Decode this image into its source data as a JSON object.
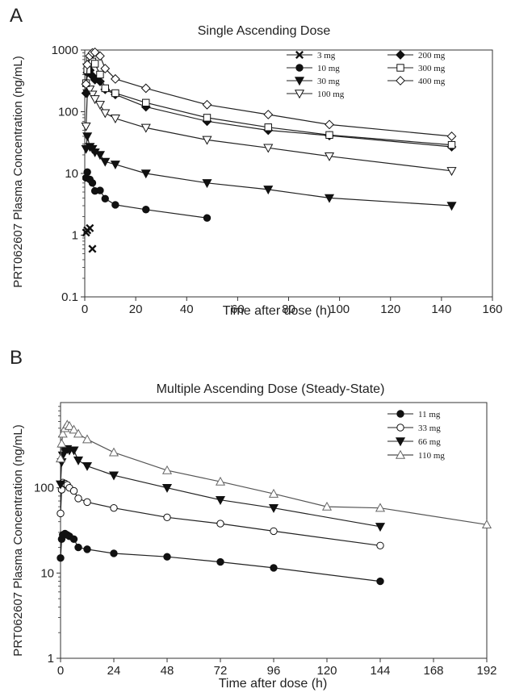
{
  "chart_data": [
    {
      "panel_label": "A",
      "type": "line",
      "title": "Single Ascending Dose",
      "xlabel": "Time after dose (h)",
      "ylabel": "PRT062607 Plasma Concentration (ng/mL)",
      "x_scale": "linear",
      "y_scale": "log",
      "xlim": [
        0,
        160
      ],
      "ylim": [
        0.1,
        1000
      ],
      "x_ticks": [
        "0",
        "20",
        "40",
        "60",
        "80",
        "100",
        "120",
        "140",
        "160"
      ],
      "y_ticks": [
        "0.1",
        "1",
        "10",
        "100",
        "1000"
      ],
      "grid": false,
      "legend_position": "top-right",
      "series": [
        {
          "name": "3 mg",
          "marker": "x",
          "line": false,
          "x": [
            0.5,
            1,
            2,
            3
          ],
          "y": [
            1.1,
            1.2,
            1.3,
            0.6
          ]
        },
        {
          "name": "10 mg",
          "marker": "filled-circle",
          "line": true,
          "x": [
            0.5,
            1,
            2,
            3,
            4,
            6,
            8,
            12,
            24,
            48
          ],
          "y": [
            8.5,
            10.5,
            8.0,
            7.0,
            5.2,
            5.3,
            3.9,
            3.1,
            2.6,
            1.9
          ]
        },
        {
          "name": "30 mg",
          "marker": "filled-triangle-down",
          "line": true,
          "x": [
            0.5,
            1,
            2,
            3,
            4,
            6,
            8,
            12,
            24,
            48,
            72,
            96,
            144
          ],
          "y": [
            25,
            40,
            27,
            25,
            22,
            20,
            15.5,
            14,
            10,
            7.0,
            5.5,
            4.0,
            3.0
          ]
        },
        {
          "name": "100 mg",
          "marker": "open-triangle-down",
          "line": true,
          "x": [
            0.5,
            1,
            2,
            3,
            4,
            6,
            8,
            12,
            24,
            48,
            72,
            96,
            144
          ],
          "y": [
            58,
            200,
            230,
            190,
            160,
            130,
            95,
            78,
            55,
            35,
            26,
            19,
            11
          ]
        },
        {
          "name": "200 mg",
          "marker": "filled-diamond",
          "line": true,
          "x": [
            0.5,
            1,
            2,
            3,
            4,
            6,
            8,
            12,
            24,
            48,
            72,
            96,
            144
          ],
          "y": [
            200,
            430,
            470,
            380,
            330,
            310,
            230,
            190,
            120,
            70,
            50,
            41,
            27
          ]
        },
        {
          "name": "300 mg",
          "marker": "open-square",
          "line": true,
          "x": [
            0.5,
            1,
            2,
            3,
            4,
            6,
            8,
            12,
            24,
            48,
            72,
            96,
            144
          ],
          "y": [
            290,
            470,
            700,
            650,
            600,
            400,
            240,
            200,
            140,
            80,
            56,
            42,
            29
          ]
        },
        {
          "name": "400 mg",
          "marker": "open-diamond",
          "line": true,
          "x": [
            0.5,
            1,
            2,
            3,
            4,
            6,
            8,
            12,
            24,
            48,
            72,
            96,
            144
          ],
          "y": [
            280,
            580,
            800,
            900,
            920,
            800,
            500,
            340,
            240,
            130,
            90,
            62,
            40
          ]
        }
      ]
    },
    {
      "panel_label": "B",
      "type": "line",
      "title": "Multiple Ascending Dose (Steady-State)",
      "xlabel": "Time after dose (h)",
      "ylabel": "PRT062607 Plasma Concentration (ng/mL)",
      "x_scale": "linear",
      "y_scale": "log",
      "xlim": [
        0,
        192
      ],
      "ylim": [
        1,
        1000
      ],
      "x_ticks": [
        "0",
        "24",
        "48",
        "72",
        "96",
        "120",
        "144",
        "168",
        "192"
      ],
      "y_ticks": [
        "1",
        "10",
        "100"
      ],
      "grid": false,
      "legend_position": "top-right",
      "series": [
        {
          "name": "11 mg",
          "marker": "filled-circle",
          "line": true,
          "x": [
            0,
            0.5,
            1,
            2,
            3,
            4,
            6,
            8,
            12,
            24,
            48,
            72,
            96,
            144
          ],
          "y": [
            15,
            25,
            28,
            29,
            28,
            27,
            25,
            20,
            19,
            17,
            15.5,
            13.5,
            11.5,
            8
          ]
        },
        {
          "name": "33 mg",
          "marker": "open-circle",
          "line": true,
          "x": [
            0,
            0.5,
            1,
            2,
            3,
            4,
            6,
            8,
            12,
            24,
            48,
            72,
            96,
            144
          ],
          "y": [
            50,
            95,
            115,
            112,
            108,
            100,
            92,
            75,
            68,
            58,
            45,
            38,
            31,
            21
          ]
        },
        {
          "name": "66 mg",
          "marker": "filled-triangle-down",
          "line": true,
          "x": [
            0,
            0.5,
            1,
            2,
            3,
            4,
            6,
            8,
            12,
            24,
            48,
            72,
            96,
            144
          ],
          "y": [
            110,
            200,
            240,
            270,
            285,
            275,
            275,
            210,
            180,
            140,
            100,
            72,
            58,
            35
          ]
        },
        {
          "name": "110 mg",
          "marker": "open-triangle-up",
          "line": true,
          "x": [
            0,
            0.5,
            1,
            2,
            3,
            4,
            6,
            8,
            12,
            24,
            48,
            72,
            96,
            120,
            144,
            192
          ],
          "y": [
            220,
            330,
            430,
            500,
            550,
            530,
            480,
            430,
            370,
            260,
            160,
            118,
            85,
            60,
            58,
            37
          ]
        }
      ]
    }
  ]
}
